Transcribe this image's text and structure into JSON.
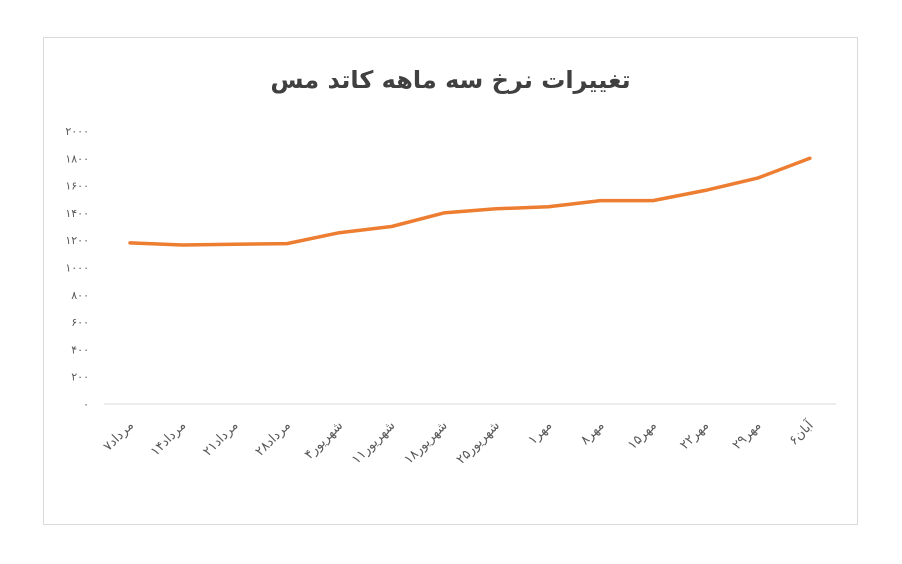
{
  "chart_data": {
    "type": "line",
    "title": "تغییرات نرخ سه ماهه کاتد مس",
    "categories": [
      "۷مرداد",
      "۱۴مرداد",
      "۲۱مرداد",
      "۲۸مرداد",
      "۴شهریور",
      "۱۱شهریور",
      "۱۸شهریور",
      "۲۵شهریور",
      "۱مهر",
      "۸مهر",
      "۱۵مهر",
      "۲۲مهر",
      "۲۹مهر",
      "۶آبان"
    ],
    "series": [
      {
        "values": [
          1180,
          1165,
          1170,
          1175,
          1255,
          1300,
          1400,
          1430,
          1445,
          1490,
          1490,
          1565,
          1655,
          1800
        ],
        "color": "#ed7d31"
      }
    ],
    "ylim": [
      0,
      2000
    ],
    "yticks": [
      0,
      200,
      400,
      600,
      800,
      1000,
      1200,
      1400,
      1600,
      1800,
      2000
    ],
    "ytick_labels": [
      "۰",
      "۲۰۰",
      "۴۰۰",
      "۶۰۰",
      "۸۰۰",
      "۱۰۰۰",
      "۱۲۰۰",
      "۱۴۰۰",
      "۱۶۰۰",
      "۱۸۰۰",
      "۲۰۰۰"
    ],
    "grid": false,
    "legend": "none",
    "xlabel": "",
    "ylabel": ""
  }
}
